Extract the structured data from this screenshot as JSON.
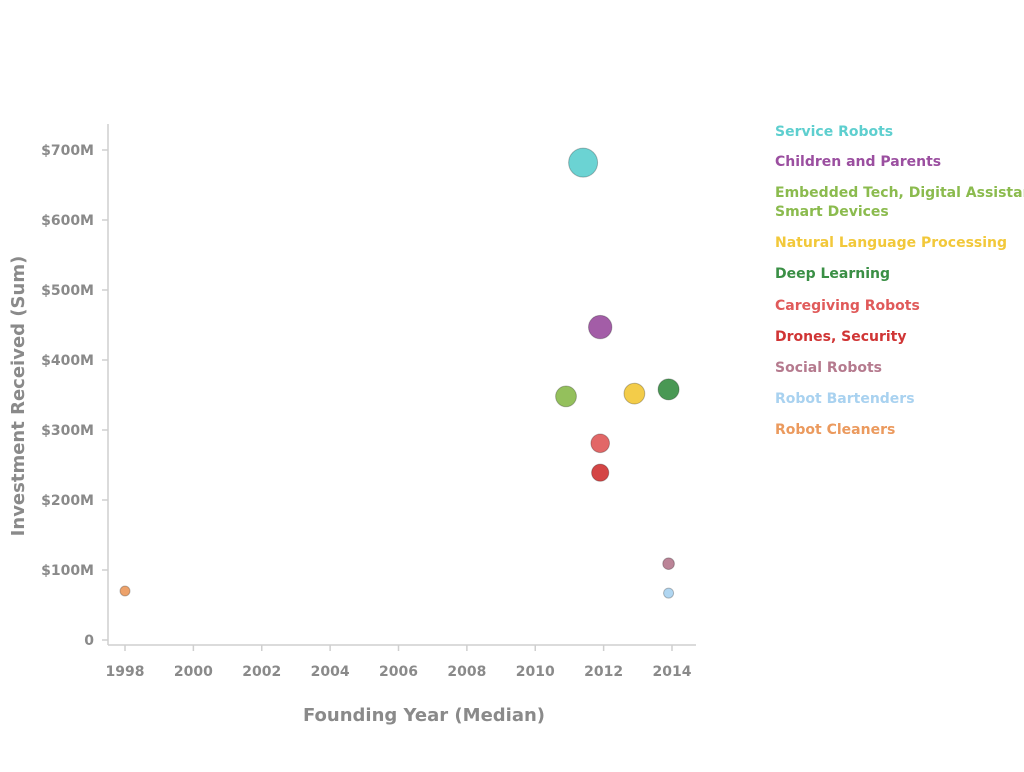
{
  "chart_data": {
    "type": "scatter",
    "title": "",
    "xlabel": "Founding Year (Median)",
    "ylabel": "Investment Received (Sum)",
    "xlim": [
      1997.5,
      2014.5
    ],
    "ylim": [
      0,
      750
    ],
    "x_ticks": [
      1998,
      2000,
      2002,
      2004,
      2006,
      2008,
      2010,
      2012,
      2014
    ],
    "y_ticks": [
      {
        "value": 0,
        "label": "0"
      },
      {
        "value": 100,
        "label": "$100M"
      },
      {
        "value": 200,
        "label": "$200M"
      },
      {
        "value": 300,
        "label": "$300M"
      },
      {
        "value": 400,
        "label": "$400M"
      },
      {
        "value": 500,
        "label": "$500M"
      },
      {
        "value": 600,
        "label": "$600M"
      },
      {
        "value": 700,
        "label": "$700M"
      }
    ],
    "grid": false,
    "legend_position": "right",
    "size_encoding": "investment",
    "series": [
      {
        "name": "Service Robots",
        "color": "#5ecfcf",
        "x": 2011.4,
        "y": 682
      },
      {
        "name": "Children and Parents",
        "color": "#9b4fa0",
        "x": 2011.9,
        "y": 447
      },
      {
        "name": "Embedded Tech, Digital Assistant, Smart Devices",
        "color": "#8bbb4e",
        "x": 2010.9,
        "y": 348
      },
      {
        "name": "Natural Language Processing",
        "color": "#f2c83a",
        "x": 2012.9,
        "y": 352
      },
      {
        "name": "Deep Learning",
        "color": "#3a8f45",
        "x": 2013.9,
        "y": 358
      },
      {
        "name": "Caregiving Robots",
        "color": "#e05a5a",
        "x": 2011.9,
        "y": 281
      },
      {
        "name": "Drones, Security",
        "color": "#d03535",
        "x": 2011.9,
        "y": 239
      },
      {
        "name": "Social Robots",
        "color": "#b57a8e",
        "x": 2013.9,
        "y": 109
      },
      {
        "name": "Robot Bartenders",
        "color": "#a9d2f0",
        "x": 2013.9,
        "y": 67
      },
      {
        "name": "Robot Cleaners",
        "color": "#eb9a5e",
        "x": 1998.0,
        "y": 70
      }
    ]
  }
}
